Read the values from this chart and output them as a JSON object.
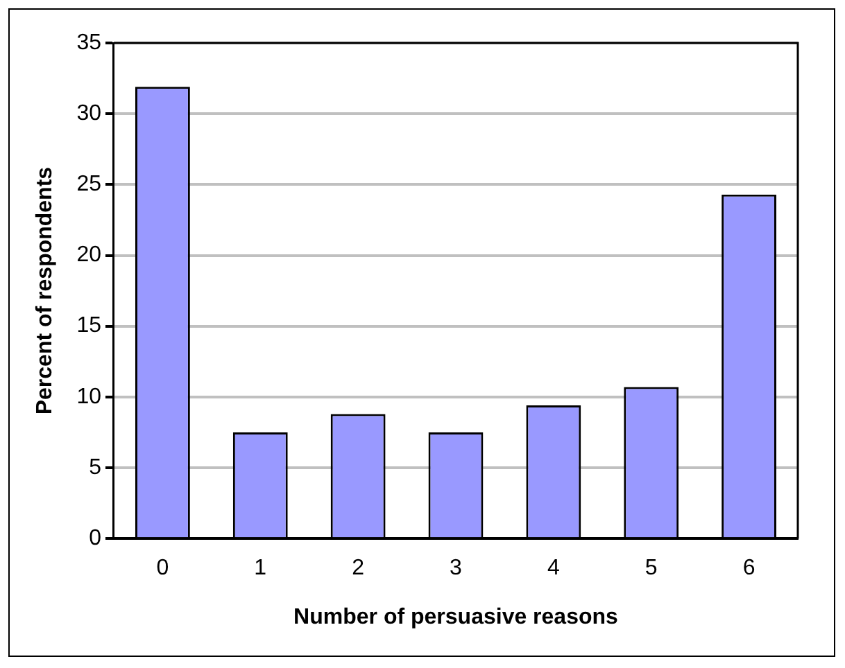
{
  "chart_data": {
    "type": "bar",
    "xlabel": "Number of persuasive reasons",
    "ylabel": "Percent of respondents",
    "categories": [
      "0",
      "1",
      "2",
      "3",
      "4",
      "5",
      "6"
    ],
    "values": [
      31.9,
      7.5,
      8.8,
      7.5,
      9.4,
      10.7,
      24.3
    ],
    "color": "#9999ff",
    "ylim": [
      0,
      35
    ],
    "yticks": [
      0,
      5,
      10,
      15,
      20,
      25,
      30,
      35
    ],
    "grid": "y",
    "legend": false
  }
}
